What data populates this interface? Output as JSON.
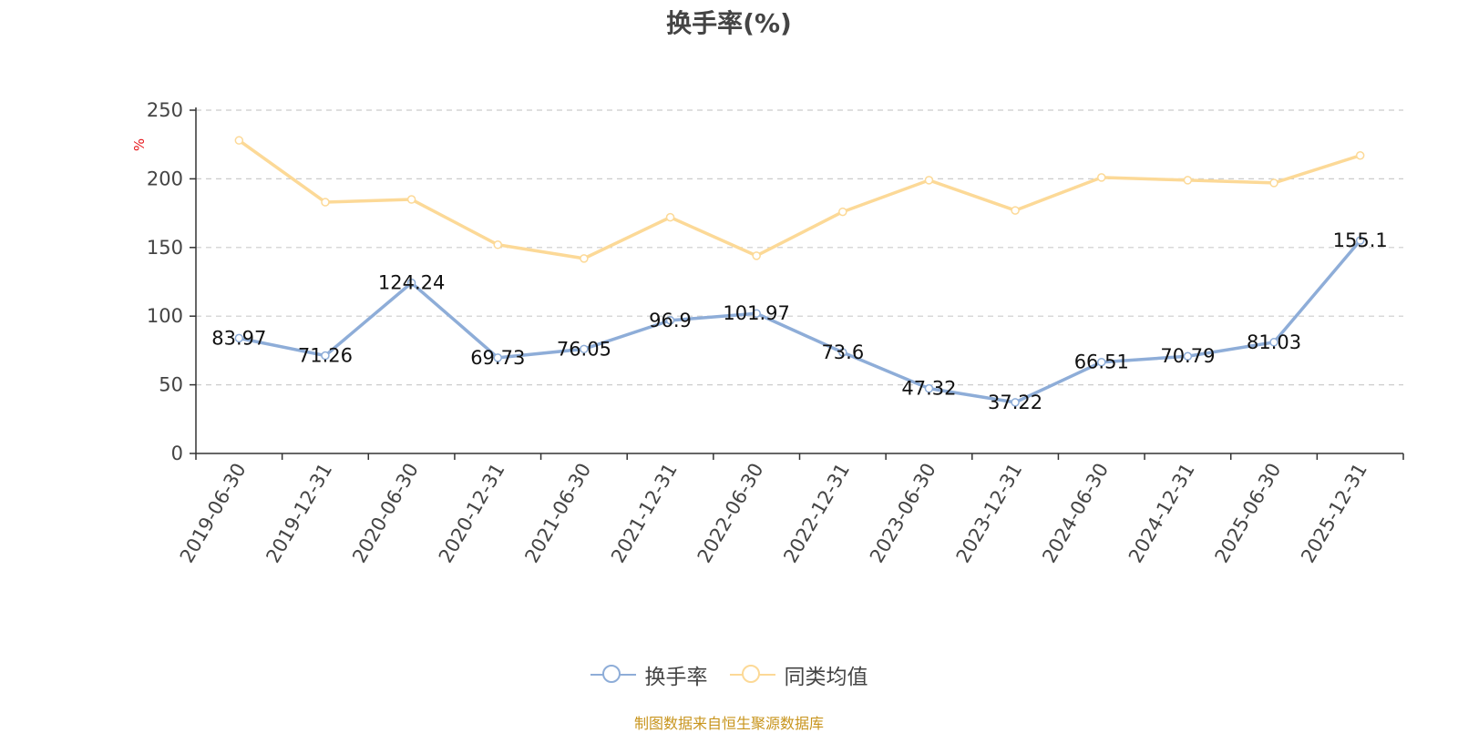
{
  "title": "换手率(%)",
  "y_unit": "%",
  "source": "制图数据来自恒生聚源数据库",
  "colors": {
    "series1": "#8eadd8",
    "series2": "#fcd997",
    "title": "#444444",
    "source": "#c8951e",
    "unit": "#e6161b"
  },
  "chart_data": {
    "type": "line",
    "title": "换手率(%)",
    "ylabel": "%",
    "ylim": [
      0,
      250
    ],
    "yticks": [
      0,
      50,
      100,
      150,
      200,
      250
    ],
    "grid": true,
    "legend_position": "bottom",
    "categories": [
      "2019-06-30",
      "2019-12-31",
      "2020-06-30",
      "2020-12-31",
      "2021-06-30",
      "2021-12-31",
      "2022-06-30",
      "2022-12-31",
      "2023-06-30",
      "2023-12-31",
      "2024-06-30",
      "2024-12-31",
      "2025-06-30",
      "2025-12-31"
    ],
    "series": [
      {
        "name": "换手率",
        "values": [
          83.97,
          71.26,
          124.24,
          69.73,
          76.05,
          96.9,
          101.97,
          73.6,
          47.32,
          37.22,
          66.51,
          70.79,
          81.03,
          155.1
        ],
        "labels": [
          "83.97",
          "71.26",
          "124.24",
          "69.73",
          "76.05",
          "96.9",
          "101.97",
          "73.6",
          "47.32",
          "37.22",
          "66.51",
          "70.79",
          "81.03",
          "155.1"
        ]
      },
      {
        "name": "同类均值",
        "values": [
          228,
          183,
          185,
          152,
          142,
          172,
          144,
          176,
          199,
          177,
          201,
          199,
          197,
          217
        ]
      }
    ]
  }
}
